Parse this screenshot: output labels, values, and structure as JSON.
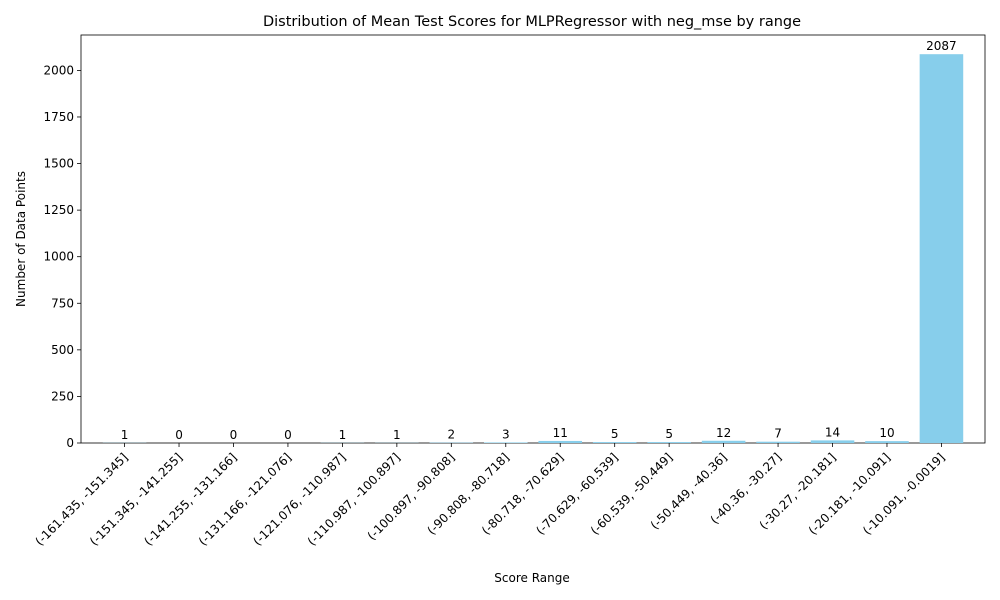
{
  "chart_data": {
    "type": "bar",
    "title": "Distribution of Mean Test Scores for MLPRegressor with neg_mse by range",
    "xlabel": "Score Range",
    "ylabel": "Number of Data Points",
    "ylim": [
      0,
      2190
    ],
    "yticks": [
      0,
      250,
      500,
      750,
      1000,
      1250,
      1500,
      1750,
      2000
    ],
    "grid": false,
    "bar_color": "#87CEEB",
    "categories": [
      "(-161.435, -151.345]",
      "(-151.345, -141.255]",
      "(-141.255, -131.166]",
      "(-131.166, -121.076]",
      "(-121.076, -110.987]",
      "(-110.987, -100.897]",
      "(-100.897, -90.808]",
      "(-90.808, -80.718]",
      "(-80.718, -70.629]",
      "(-70.629, -60.539]",
      "(-60.539, -50.449]",
      "(-50.449, -40.36]",
      "(-40.36, -30.27]",
      "(-30.27, -20.181]",
      "(-20.181, -10.091]",
      "(-10.091, -0.0019]"
    ],
    "values": [
      1,
      0,
      0,
      0,
      1,
      1,
      2,
      3,
      11,
      5,
      5,
      12,
      7,
      14,
      10,
      2087
    ]
  }
}
